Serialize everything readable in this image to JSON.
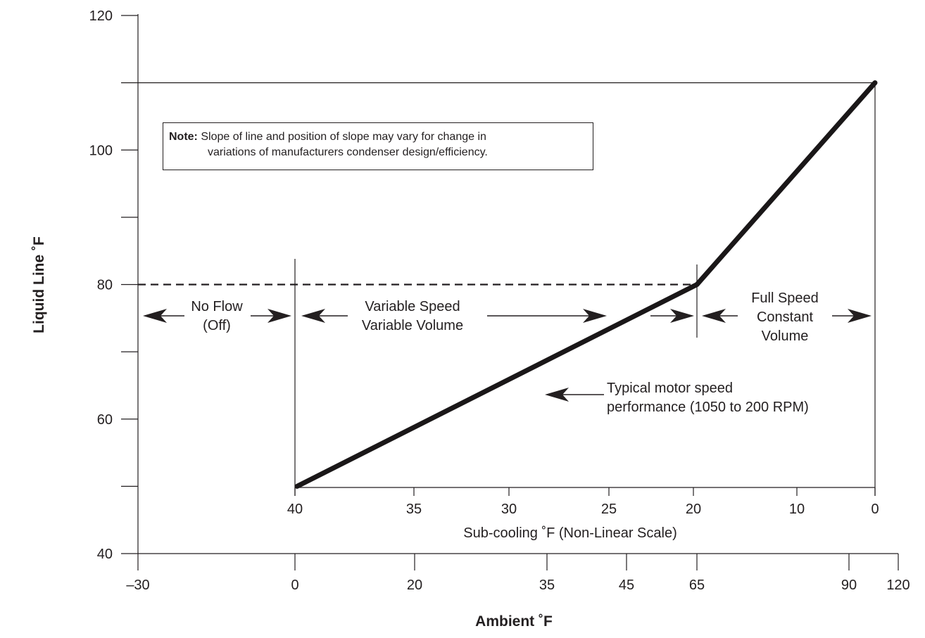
{
  "chart_data": {
    "type": "line",
    "title": "",
    "xlabel": "Ambient ˚F",
    "ylabel": "Liquid Line ˚F",
    "secondary_xlabel": "Sub-cooling ˚F (Non-Linear Scale)",
    "x_ticks": [
      "–30",
      "0",
      "20",
      "35",
      "45",
      "65",
      "90",
      "120"
    ],
    "x_tick_values": [
      -30,
      0,
      20,
      35,
      45,
      65,
      90,
      120
    ],
    "secondary_x_ticks": [
      "40",
      "35",
      "30",
      "25",
      "20",
      "10",
      "0"
    ],
    "secondary_x_tick_ambient": [
      0,
      15,
      28,
      41,
      52,
      76,
      100
    ],
    "y_ticks": [
      "40",
      "60",
      "80",
      "100",
      "120"
    ],
    "y_tick_values": [
      40,
      60,
      80,
      100,
      120
    ],
    "ylim": [
      40,
      120
    ],
    "axis_scale": "non-linear",
    "grid": false,
    "series": [
      {
        "x": [
          0,
          52,
          100
        ],
        "y": [
          50,
          80,
          110
        ]
      }
    ],
    "dashed_reference": {
      "y": 80,
      "x_from": -30,
      "x_to": 52
    },
    "top_reference": {
      "y": 110
    },
    "regions": [
      {
        "line1": "No Flow",
        "line2": "(Off)"
      },
      {
        "line1": "Variable Speed",
        "line2": "Variable Volume"
      },
      {
        "line1": "Full Speed",
        "line2": "Constant",
        "line3": "Volume"
      }
    ],
    "annotation": {
      "line1": "Typical motor speed",
      "line2": "performance  (1050 to 200 RPM)"
    },
    "note": {
      "bold": "Note:",
      "line1": " Slope of line and position of slope may vary for change in",
      "line2": "variations of manufacturers condenser design/efficiency."
    }
  }
}
